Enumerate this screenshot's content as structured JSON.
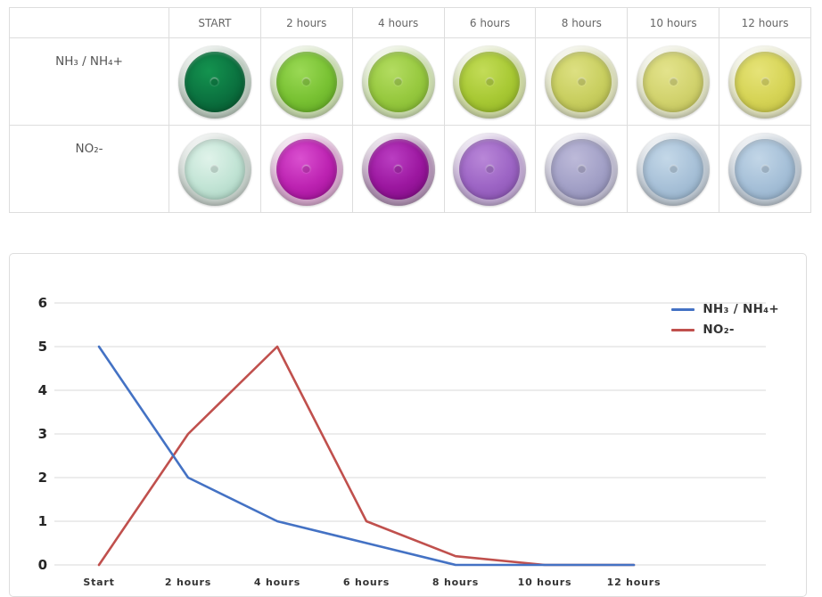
{
  "table": {
    "columns": [
      "START",
      "2 hours",
      "4 hours",
      "6 hours",
      "8 hours",
      "10 hours",
      "12 hours"
    ],
    "rows": [
      {
        "label": "NH₃ / NH₄+",
        "vials": [
          {
            "liquid": "#0b7340",
            "light": "#14934f",
            "dark": "#06532c",
            "rim": "#b9c8bc"
          },
          {
            "liquid": "#79c233",
            "light": "#9ad955",
            "dark": "#5da521",
            "rim": "#c5d8ab"
          },
          {
            "liquid": "#97c93f",
            "light": "#b3dc61",
            "dark": "#7eb32d",
            "rim": "#cbdcae"
          },
          {
            "liquid": "#a8c934",
            "light": "#c3dc58",
            "dark": "#90b224",
            "rim": "#cdd8a3"
          },
          {
            "liquid": "#c9cf60",
            "light": "#dde082",
            "dark": "#b2b84a",
            "rim": "#d9dcb8"
          },
          {
            "liquid": "#d2d36e",
            "light": "#e3e38c",
            "dark": "#bdbe56",
            "rim": "#dcdec0"
          },
          {
            "liquid": "#d6d456",
            "light": "#e6e378",
            "dark": "#c1bf42",
            "rim": "#dedfbb"
          }
        ]
      },
      {
        "label": "NO₂-",
        "vials": [
          {
            "liquid": "#c2e4d5",
            "light": "#e0f3ea",
            "dark": "#a6cfbe",
            "rim": "#c5cfc9"
          },
          {
            "liquid": "#bd23b2",
            "light": "#da50d0",
            "dark": "#990d90",
            "rim": "#d4a6cb"
          },
          {
            "liquid": "#9c17a0",
            "light": "#ba3ec2",
            "dark": "#7a0a7e",
            "rim": "#b293b5"
          },
          {
            "liquid": "#9d65c5",
            "light": "#b987d8",
            "dark": "#844eac",
            "rim": "#bfa8d0"
          },
          {
            "liquid": "#a3a1c7",
            "light": "#bdbad9",
            "dark": "#8b89b2",
            "rim": "#bdbace"
          },
          {
            "liquid": "#a8c1d8",
            "light": "#c4d8e8",
            "dark": "#90adc6",
            "rim": "#bdc7d1"
          },
          {
            "liquid": "#a6c0d8",
            "light": "#c2d6e7",
            "dark": "#8eabc6",
            "rim": "#bdc7d1"
          }
        ]
      }
    ]
  },
  "chart_data": {
    "type": "line",
    "categories": [
      "Start",
      "2 hours",
      "4 hours",
      "6 hours",
      "8 hours",
      "10 hours",
      "12 hours"
    ],
    "series": [
      {
        "name": "NH₃ / NH₄+",
        "color": "#4472c4",
        "values": [
          5,
          2,
          1,
          0.5,
          0,
          0,
          0
        ]
      },
      {
        "name": "NO₂-",
        "color": "#c0504d",
        "values": [
          0,
          3,
          5,
          1,
          0.2,
          0,
          0
        ]
      }
    ],
    "title": "",
    "xlabel": "",
    "ylabel": "",
    "ylim": [
      0,
      6
    ],
    "yticks": [
      0,
      1,
      2,
      3,
      4,
      5,
      6
    ],
    "grid": true,
    "legend_position": "top-right"
  },
  "colors": {
    "table_border": "#dddddd",
    "chart_border": "#dddddd",
    "gridline": "#d9d9d9",
    "header_text": "#666666",
    "row_label_text": "#555555",
    "axis_text": "#262626",
    "xtick_text": "#333333",
    "legend_text": "#333333",
    "series_ammonia": "#4472c4",
    "series_nitrite": "#c0504d"
  }
}
